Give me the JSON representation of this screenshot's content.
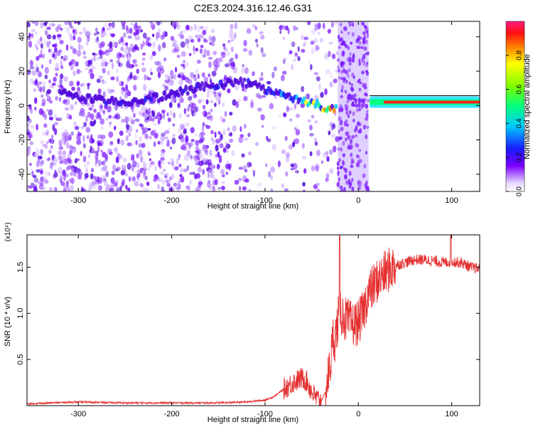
{
  "title": "C2E3.2024.316.12.46.G31",
  "colors": {
    "snr_line": "#e53030",
    "spec_background": "#ffffff",
    "axis": "#000000"
  },
  "chart_data": [
    {
      "type": "heatmap",
      "title": "C2E3.2024.316.12.46.G31",
      "xlabel": "Height of straight line (km)",
      "ylabel": "Frequency (Hz)",
      "xlim": [
        -355,
        130
      ],
      "ylim": [
        -50,
        49
      ],
      "x_ticks": [
        -300,
        -200,
        -100,
        0,
        100
      ],
      "y_ticks": [
        -40,
        -20,
        0,
        20,
        40
      ],
      "colorbar": {
        "label": "Normalized spectral amplitude",
        "range": [
          0,
          1
        ],
        "ticks": [
          "0.0",
          "0.2",
          "0.4",
          "0.6",
          "0.8"
        ],
        "colormap": "rainbow"
      },
      "features": {
        "noise_region_x": [
          -355,
          -20
        ],
        "noise_dense_until_x": -135,
        "tone_track": [
          {
            "x": -320,
            "f": 7
          },
          {
            "x": -280,
            "f": 3
          },
          {
            "x": -250,
            "f": 2
          },
          {
            "x": -210,
            "f": 5
          },
          {
            "x": -175,
            "f": 10
          },
          {
            "x": -150,
            "f": 12
          },
          {
            "x": -130,
            "f": 14
          },
          {
            "x": -110,
            "f": 12
          },
          {
            "x": -90,
            "f": 8
          },
          {
            "x": -70,
            "f": 4
          },
          {
            "x": -50,
            "f": 1
          },
          {
            "x": -30,
            "f": -2
          },
          {
            "x": -22,
            "f": 0
          }
        ],
        "occultation_gap_x": [
          -22,
          11
        ],
        "steady_tone": {
          "x_start": 12,
          "x_end": 130,
          "f": 2
        }
      }
    },
    {
      "type": "line",
      "xlabel": "Height of straight line (km)",
      "ylabel": "SNR (10 * v/v)",
      "y_scale_label": "(x10⁴)",
      "xlim": [
        -355,
        130
      ],
      "ylim": [
        0,
        1.85
      ],
      "x_ticks": [
        -300,
        -200,
        -100,
        0,
        100
      ],
      "y_ticks": [
        0.5,
        1.0,
        1.5
      ],
      "series": [
        {
          "x": [
            -355,
            -300,
            -250,
            -200,
            -150,
            -120,
            -100,
            -90,
            -80,
            -70,
            -60,
            -55,
            -50,
            -45,
            -40,
            -35,
            -30,
            -27,
            -25,
            -22,
            -20,
            -18,
            -15,
            -10,
            -5,
            0,
            5,
            10,
            20,
            30,
            40,
            50,
            60,
            70,
            80,
            90,
            100,
            110,
            120,
            130
          ],
          "y": [
            0.02,
            0.04,
            0.03,
            0.03,
            0.03,
            0.04,
            0.06,
            0.1,
            0.18,
            0.25,
            0.3,
            0.26,
            0.15,
            0.08,
            0.05,
            0.15,
            0.45,
            0.75,
            0.72,
            0.9,
            1.1,
            1.0,
            0.95,
            0.9,
            0.88,
            0.9,
            1.0,
            1.2,
            1.35,
            1.45,
            1.52,
            1.55,
            1.58,
            1.58,
            1.57,
            1.55,
            1.56,
            1.55,
            1.5,
            1.48
          ],
          "color": "#e53030"
        }
      ],
      "annotations": [
        {
          "x": -20,
          "y": 1.85,
          "note": "spike"
        },
        {
          "x": 100,
          "y": 1.85,
          "note": "spike"
        }
      ]
    }
  ]
}
